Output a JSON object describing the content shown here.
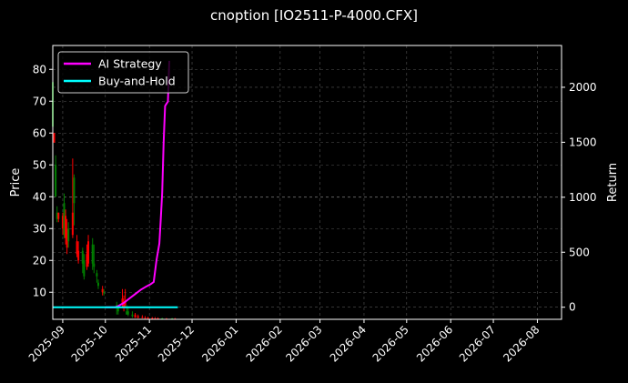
{
  "chart_data": {
    "type": "candlestick+line",
    "title": "cnoption [IO2511-P-4000.CFX]",
    "xlabel": "",
    "ylabel_left": "Price",
    "ylabel_right": "Return",
    "x_ticks": [
      "2025-09",
      "2025-10",
      "2025-11",
      "2025-12",
      "2026-01",
      "2026-02",
      "2026-03",
      "2026-04",
      "2026-05",
      "2026-06",
      "2026-07",
      "2026-08"
    ],
    "y_left_ticks": [
      10,
      20,
      30,
      40,
      50,
      60,
      70,
      80
    ],
    "y_left_range": [
      1.5,
      87.5
    ],
    "y_right_ticks": [
      0,
      500,
      1000,
      1500,
      2000
    ],
    "y_right_range": [
      -110,
      2380
    ],
    "grid": true,
    "legend_position": "upper left",
    "legend": [
      {
        "name": "AI Strategy",
        "color": "#ff00ff"
      },
      {
        "name": "Buy-and-Hold",
        "color": "#00ffff"
      }
    ],
    "candles": [
      {
        "d": "2025-08-25",
        "o": 62,
        "h": 77,
        "l": 61,
        "c": 76,
        "up": true
      },
      {
        "d": "2025-08-26",
        "o": 60,
        "h": 60,
        "l": 57,
        "c": 57,
        "up": false
      },
      {
        "d": "2025-08-27",
        "o": 40,
        "h": 53,
        "l": 40,
        "c": 50,
        "up": true
      },
      {
        "d": "2025-08-28",
        "o": 33,
        "h": 37,
        "l": 32,
        "c": 35,
        "up": true
      },
      {
        "d": "2025-08-29",
        "o": 35,
        "h": 35,
        "l": 32,
        "c": 33,
        "up": false
      },
      {
        "d": "2025-09-01",
        "o": 34,
        "h": 35,
        "l": 28,
        "c": 30,
        "up": false
      },
      {
        "d": "2025-09-02",
        "o": 28,
        "h": 41,
        "l": 27,
        "c": 38,
        "up": true
      },
      {
        "d": "2025-09-03",
        "o": 34,
        "h": 36,
        "l": 25,
        "c": 27,
        "up": false
      },
      {
        "d": "2025-09-04",
        "o": 30,
        "h": 33,
        "l": 22,
        "c": 24,
        "up": false
      },
      {
        "d": "2025-09-05",
        "o": 26,
        "h": 32,
        "l": 24,
        "c": 30,
        "up": true
      },
      {
        "d": "2025-09-08",
        "o": 35,
        "h": 52,
        "l": 27,
        "c": 28,
        "up": false
      },
      {
        "d": "2025-09-09",
        "o": 38,
        "h": 47,
        "l": 31,
        "c": 46,
        "up": true
      },
      {
        "d": "2025-09-11",
        "o": 26,
        "h": 28,
        "l": 21,
        "c": 22,
        "up": false
      },
      {
        "d": "2025-09-12",
        "o": 23,
        "h": 26,
        "l": 19,
        "c": 20,
        "up": false
      },
      {
        "d": "2025-09-15",
        "o": 19,
        "h": 24,
        "l": 16,
        "c": 23,
        "up": true
      },
      {
        "d": "2025-09-16",
        "o": 20,
        "h": 22,
        "l": 14,
        "c": 15,
        "up": true
      },
      {
        "d": "2025-09-18",
        "o": 22,
        "h": 25,
        "l": 17,
        "c": 18,
        "up": false
      },
      {
        "d": "2025-09-19",
        "o": 19,
        "h": 28,
        "l": 18,
        "c": 26,
        "up": false
      },
      {
        "d": "2025-09-22",
        "o": 19,
        "h": 27,
        "l": 17,
        "c": 25,
        "up": true
      },
      {
        "d": "2025-09-23",
        "o": 18,
        "h": 25,
        "l": 16,
        "c": 19,
        "up": true
      },
      {
        "d": "2025-09-25",
        "o": 15,
        "h": 17,
        "l": 13,
        "c": 16,
        "up": true
      },
      {
        "d": "2025-09-26",
        "o": 13,
        "h": 14,
        "l": 11,
        "c": 12,
        "up": true
      },
      {
        "d": "2025-09-29",
        "o": 11,
        "h": 12,
        "l": 9,
        "c": 10,
        "up": false
      },
      {
        "d": "2025-09-30",
        "o": 10,
        "h": 11,
        "l": 9,
        "c": 10,
        "up": true
      },
      {
        "d": "2025-10-09",
        "o": 6,
        "h": 7,
        "l": 3,
        "c": 5,
        "up": true
      },
      {
        "d": "2025-10-10",
        "o": 5,
        "h": 6,
        "l": 3,
        "c": 4,
        "up": true
      },
      {
        "d": "2025-10-13",
        "o": 8,
        "h": 11,
        "l": 5,
        "c": 6,
        "up": false
      },
      {
        "d": "2025-10-14",
        "o": 7,
        "h": 9,
        "l": 4,
        "c": 5,
        "up": false
      },
      {
        "d": "2025-10-15",
        "o": 6,
        "h": 11,
        "l": 5,
        "c": 7,
        "up": false
      },
      {
        "d": "2025-10-16",
        "o": 4,
        "h": 6,
        "l": 3,
        "c": 3,
        "up": true
      },
      {
        "d": "2025-10-17",
        "o": 4,
        "h": 5,
        "l": 2.5,
        "c": 3,
        "up": true
      },
      {
        "d": "2025-10-20",
        "o": 3,
        "h": 4,
        "l": 2,
        "c": 2.5,
        "up": true
      },
      {
        "d": "2025-10-22",
        "o": 3,
        "h": 3.5,
        "l": 2,
        "c": 2,
        "up": false
      },
      {
        "d": "2025-10-24",
        "o": 2.5,
        "h": 3,
        "l": 1.8,
        "c": 2,
        "up": false
      },
      {
        "d": "2025-10-27",
        "o": 2.2,
        "h": 2.8,
        "l": 1.8,
        "c": 2,
        "up": false
      },
      {
        "d": "2025-10-29",
        "o": 2,
        "h": 2.5,
        "l": 1.7,
        "c": 1.8,
        "up": false
      },
      {
        "d": "2025-10-31",
        "o": 2,
        "h": 2.3,
        "l": 1.6,
        "c": 1.8,
        "up": false
      },
      {
        "d": "2025-11-03",
        "o": 1.9,
        "h": 2.2,
        "l": 1.6,
        "c": 1.7,
        "up": false
      },
      {
        "d": "2025-11-05",
        "o": 1.8,
        "h": 2.2,
        "l": 1.6,
        "c": 1.7,
        "up": false
      },
      {
        "d": "2025-11-07",
        "o": 1.8,
        "h": 2.1,
        "l": 1.6,
        "c": 1.7,
        "up": false
      },
      {
        "d": "2025-11-10",
        "o": 1.7,
        "h": 2.0,
        "l": 1.6,
        "c": 1.8,
        "up": true
      },
      {
        "d": "2025-11-13",
        "o": 1.7,
        "h": 1.9,
        "l": 1.6,
        "c": 1.7,
        "up": false
      },
      {
        "d": "2025-11-17",
        "o": 1.7,
        "h": 1.9,
        "l": 1.6,
        "c": 1.8,
        "up": true
      },
      {
        "d": "2025-11-19",
        "o": 1.7,
        "h": 1.9,
        "l": 1.6,
        "c": 1.7,
        "up": false
      }
    ],
    "series": [
      {
        "name": "AI Strategy",
        "color": "#ff00ff",
        "points": [
          [
            "2025-10-01",
            0
          ],
          [
            "2025-10-08",
            0
          ],
          [
            "2025-10-10",
            10
          ],
          [
            "2025-10-14",
            40
          ],
          [
            "2025-10-18",
            80
          ],
          [
            "2025-10-22",
            120
          ],
          [
            "2025-10-26",
            160
          ],
          [
            "2025-10-30",
            190
          ],
          [
            "2025-11-02",
            210
          ],
          [
            "2025-11-04",
            230
          ],
          [
            "2025-11-06",
            430
          ],
          [
            "2025-11-08",
            580
          ],
          [
            "2025-11-09",
            810
          ],
          [
            "2025-11-10",
            1040
          ],
          [
            "2025-11-11",
            1500
          ],
          [
            "2025-11-12",
            1830
          ],
          [
            "2025-11-13",
            1850
          ],
          [
            "2025-11-14",
            1870
          ],
          [
            "2025-11-15",
            2240
          ]
        ]
      },
      {
        "name": "Buy-and-Hold",
        "color": "#00ffff",
        "points": [
          [
            "2025-08-25",
            0
          ],
          [
            "2025-11-21",
            0
          ]
        ]
      }
    ],
    "colors": {
      "up": "#008000",
      "down": "#ff0000",
      "background": "#000000",
      "grid": "#555555",
      "spine": "#ffffff"
    }
  }
}
